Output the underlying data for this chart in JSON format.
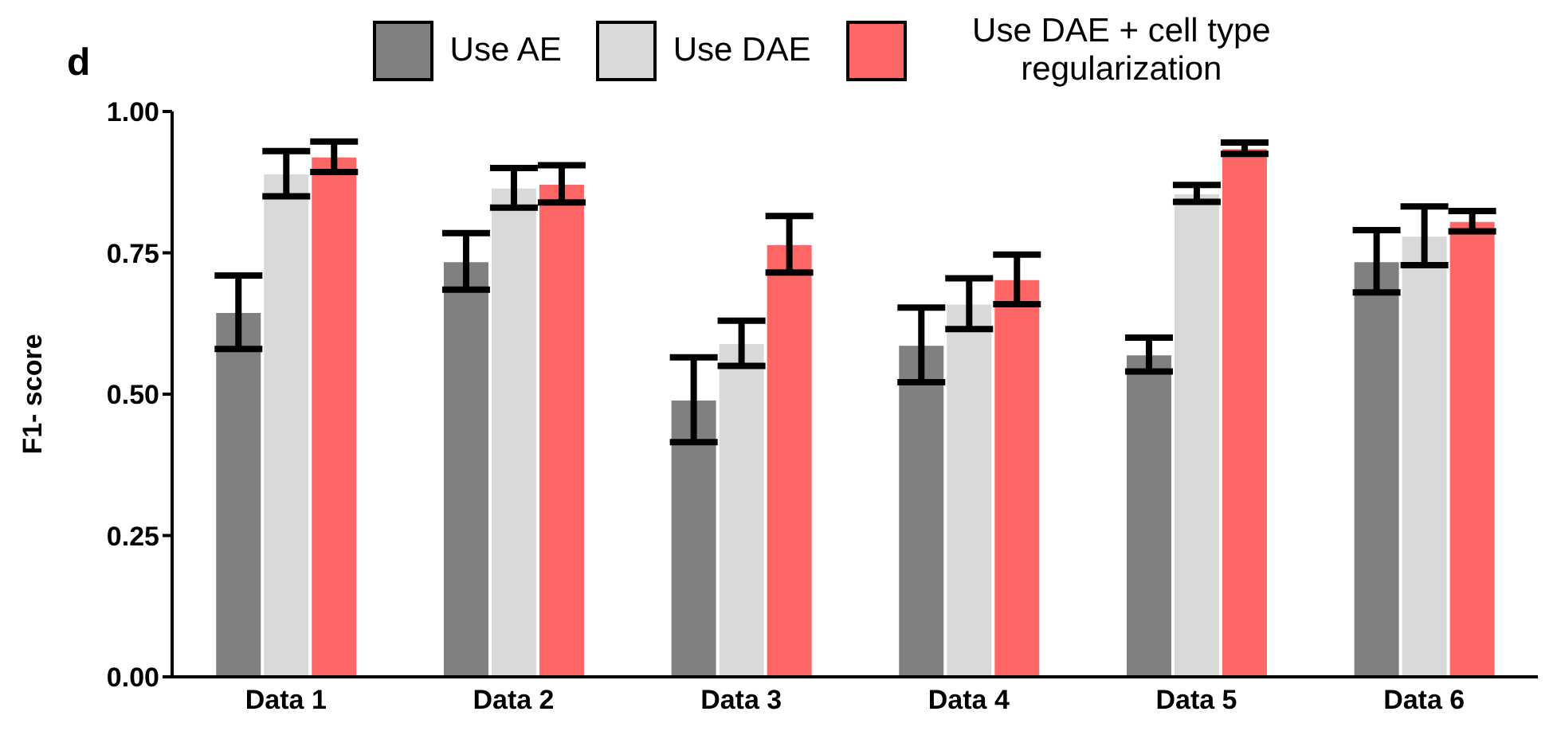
{
  "chart_data": {
    "type": "bar",
    "annotations": [
      "d"
    ],
    "ylabel": "F1- score",
    "categories": [
      "Data 1",
      "Data 2",
      "Data 3",
      "Data 4",
      "Data 5",
      "Data 6"
    ],
    "series": [
      {
        "name": "Use AE",
        "color": "#808080",
        "values": [
          0.645,
          0.735,
          0.49,
          0.587,
          0.57,
          0.735
        ],
        "errors": [
          0.065,
          0.05,
          0.075,
          0.066,
          0.03,
          0.055
        ]
      },
      {
        "name": "Use DAE",
        "color": "#d9d9d9",
        "values": [
          0.89,
          0.865,
          0.59,
          0.66,
          0.855,
          0.78
        ],
        "errors": [
          0.04,
          0.035,
          0.04,
          0.045,
          0.015,
          0.052
        ]
      },
      {
        "name": "Use DAE + cell type regularization",
        "color": "#ff6666",
        "values": [
          0.92,
          0.872,
          0.765,
          0.703,
          0.935,
          0.806
        ],
        "errors": [
          0.027,
          0.033,
          0.05,
          0.044,
          0.01,
          0.018
        ]
      }
    ],
    "ylim": [
      0,
      1
    ],
    "yticks": [
      {
        "value": 0,
        "label": "0.00"
      },
      {
        "value": 0.25,
        "label": "0.25"
      },
      {
        "value": 0.5,
        "label": "0.50"
      },
      {
        "value": 0.75,
        "label": "0.75"
      },
      {
        "value": 1,
        "label": "1.00"
      }
    ],
    "grid": false,
    "legend": "top"
  }
}
